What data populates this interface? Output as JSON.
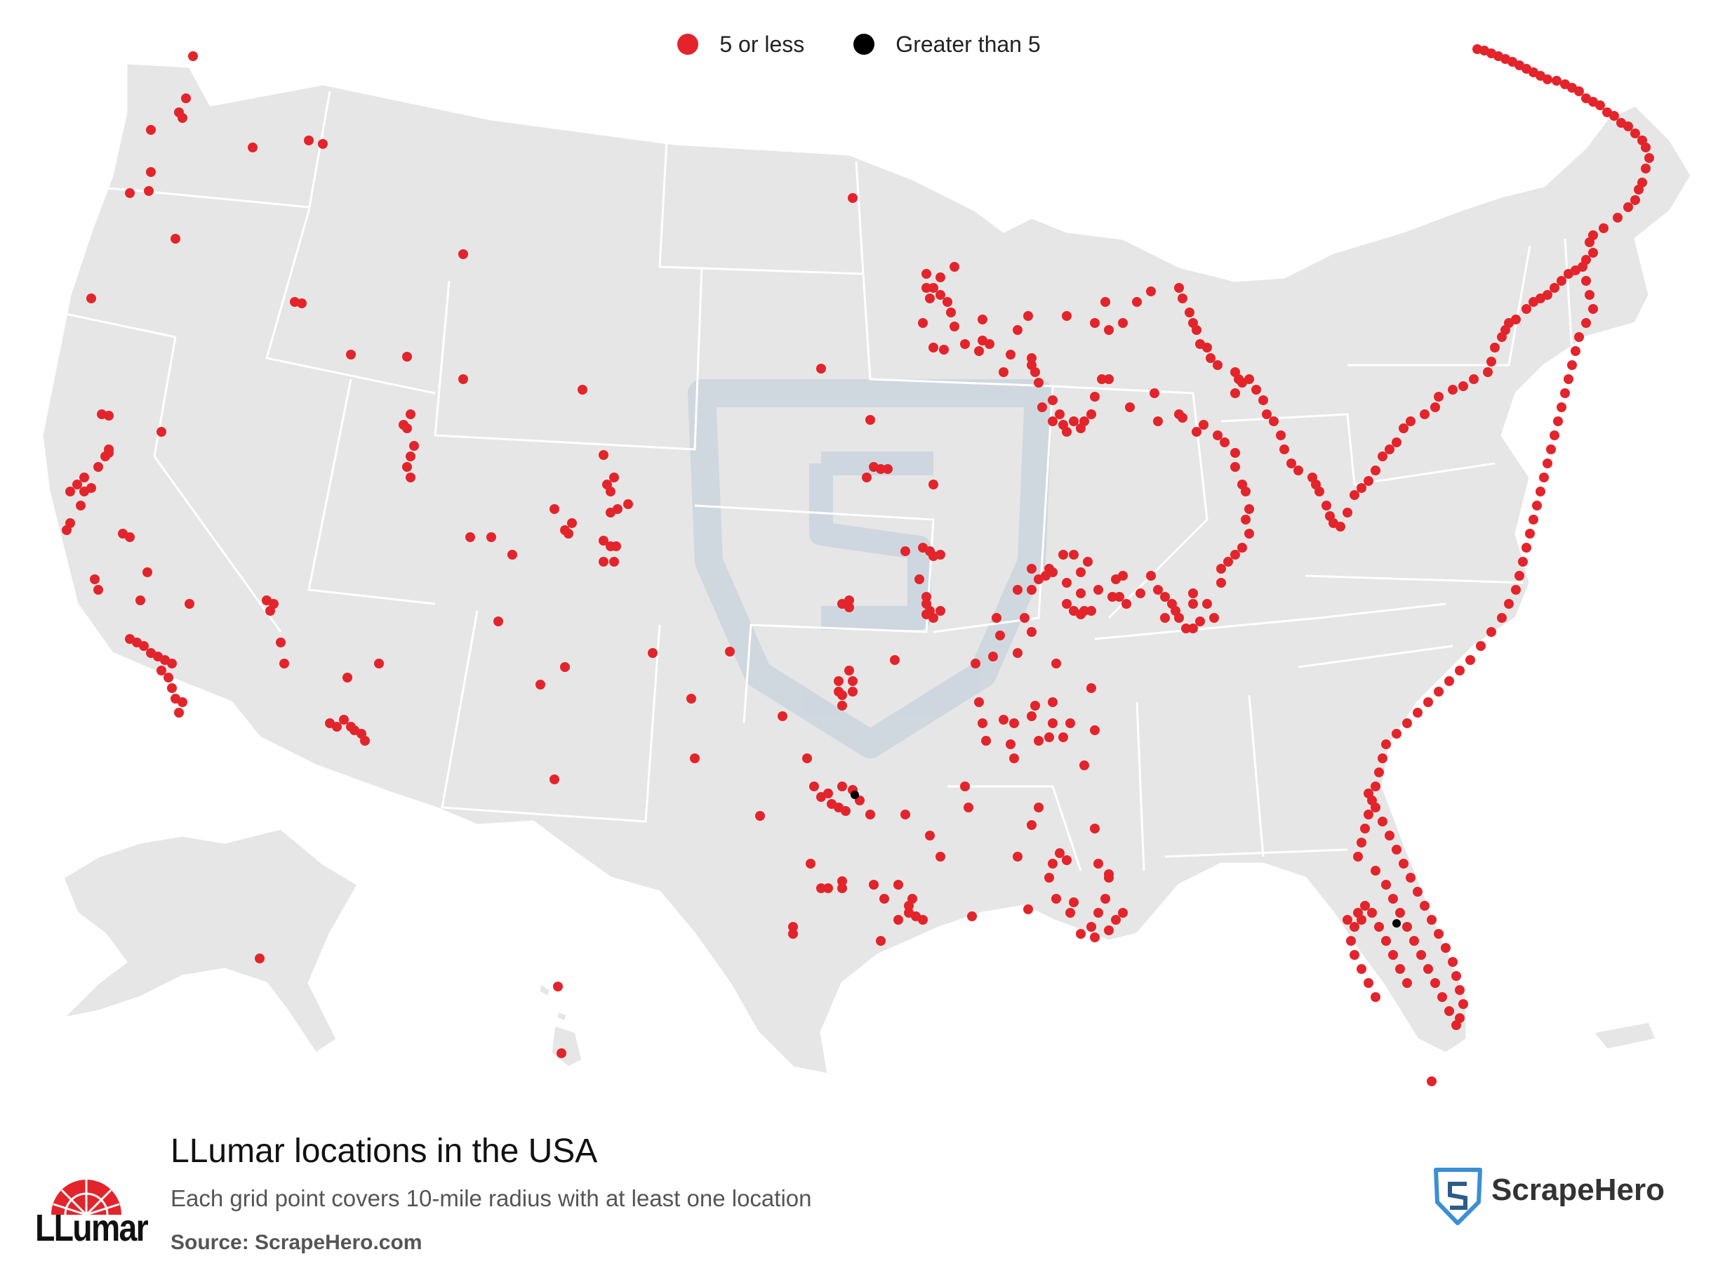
{
  "legend": {
    "items": [
      {
        "label": "5 or less",
        "color": "#e3242b"
      },
      {
        "label": "Greater than 5",
        "color": "#000000"
      }
    ]
  },
  "map": {
    "land_color": "#e6e6e6",
    "border_color": "#ffffff",
    "watermark_icon": "scrapehero-shield-icon"
  },
  "footer": {
    "title": "LLumar locations in the USA",
    "subtitle": "Each grid point covers 10-mile radius with at least one location",
    "source": "Source: ScrapeHero.com"
  },
  "brand": {
    "name": "LLumar",
    "color": "#e3242b"
  },
  "publisher": {
    "name": "ScrapeHero",
    "accent": "#3b8fd4"
  }
}
